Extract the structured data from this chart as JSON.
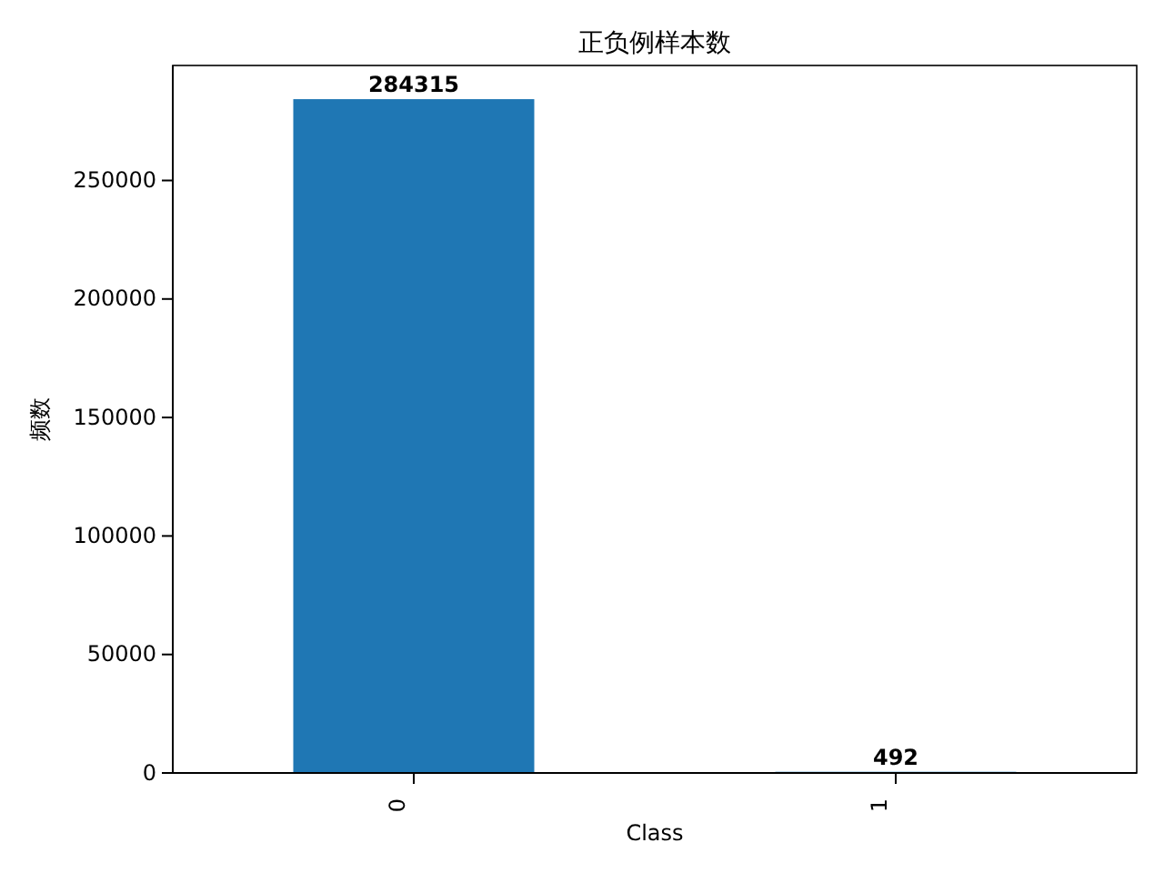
{
  "chart_data": {
    "type": "bar",
    "title": "正负例样本数",
    "xlabel": "Class",
    "ylabel": "频数",
    "categories": [
      "0",
      "1"
    ],
    "values": [
      284315,
      492
    ],
    "color": "#1f77b4",
    "ylim": [
      0,
      298531
    ],
    "yticks": [
      0,
      50000,
      100000,
      150000,
      200000,
      250000
    ],
    "data_labels": true,
    "grid": false
  }
}
